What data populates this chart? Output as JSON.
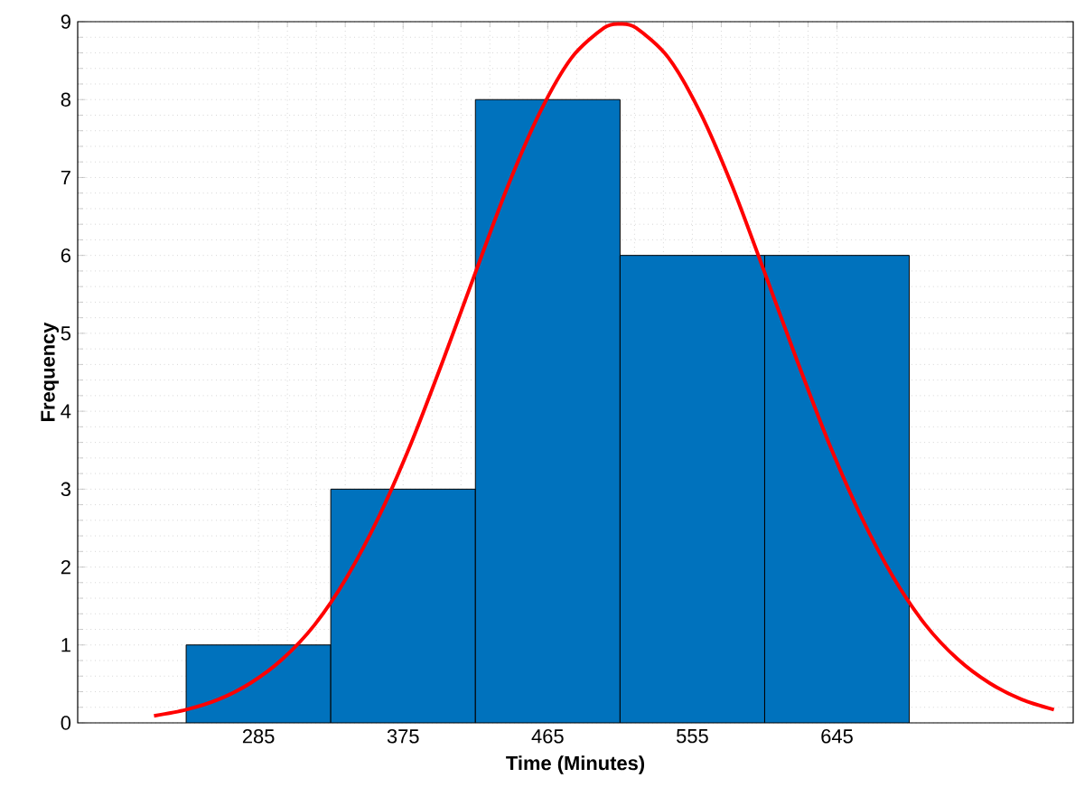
{
  "chart_data": {
    "type": "histogram",
    "xlabel": "Time (Minutes)",
    "ylabel": "Frequency",
    "bins": [
      240,
      330,
      420,
      510,
      600,
      690
    ],
    "values": [
      1,
      3,
      8,
      6,
      6
    ],
    "color": "#0072bd",
    "series": [
      {
        "type": "line",
        "color": "#ff0000",
        "x": [
          220,
          240,
          260,
          280,
          300,
          320,
          340,
          360,
          380,
          400,
          420,
          440,
          460,
          480,
          500,
          510,
          520,
          540,
          560,
          580,
          600,
          620,
          640,
          660,
          680,
          700,
          720,
          740,
          760,
          780
        ],
        "values": [
          0.09,
          0.17,
          0.3,
          0.51,
          0.82,
          1.26,
          1.87,
          2.65,
          3.59,
          4.66,
          5.78,
          6.88,
          7.83,
          8.54,
          8.92,
          8.97,
          8.92,
          8.54,
          7.83,
          6.88,
          5.78,
          4.66,
          3.59,
          2.65,
          1.87,
          1.26,
          0.82,
          0.51,
          0.3,
          0.17
        ]
      }
    ],
    "xlim": [
      172.5,
      792
    ],
    "ylim": [
      0,
      9
    ],
    "xticks": [
      285,
      375,
      465,
      555,
      645
    ],
    "yticks": [
      0,
      1,
      2,
      3,
      4,
      5,
      6,
      7,
      8,
      9
    ],
    "grid": true,
    "marker": "none",
    "line_style": "solid"
  }
}
